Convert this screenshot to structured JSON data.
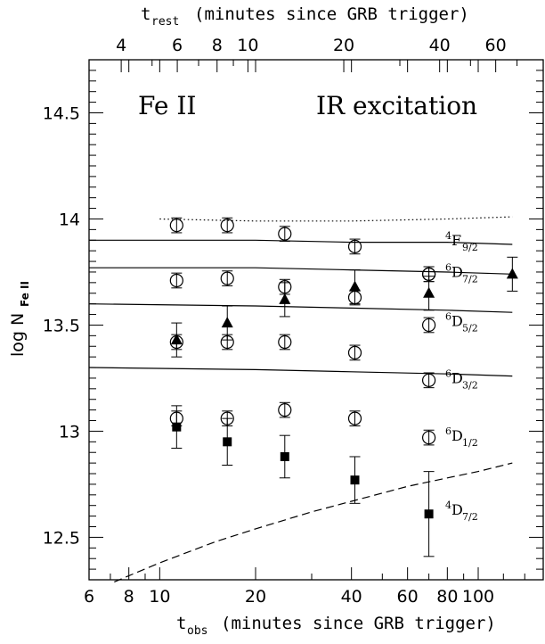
{
  "chart_data": {
    "type": "scatter",
    "xlabel": "obs",
    "xlabel_prefix": "t",
    "xlabel_rest": "(minutes since GRB trigger)",
    "toplabel_prefix": "t",
    "toplabel": "rest",
    "toplabel_rest": "(minutes since GRB trigger)",
    "ylabel_prefix": "log N",
    "ylabel": "Fe II",
    "x_scale": "log",
    "xlim": [
      6,
      160
    ],
    "ylim": [
      12.3,
      14.75
    ],
    "top_xlim": [
      3.17,
      84.6
    ],
    "x_ticks": [
      6,
      8,
      10,
      20,
      40,
      60,
      80,
      100
    ],
    "x_tick_labels": [
      "6",
      "8",
      "10",
      "20",
      "40",
      "60",
      "80",
      "100"
    ],
    "top_ticks": [
      4,
      6,
      8,
      10,
      20,
      40,
      60
    ],
    "top_tick_labels": [
      "4",
      "6",
      "8",
      "10",
      "20",
      "40",
      "60"
    ],
    "y_ticks": [
      12.5,
      13,
      13.5,
      14,
      14.5
    ],
    "y_tick_labels": [
      "12.5",
      "13",
      "13.5",
      "14",
      "14.5"
    ],
    "annotations": [
      "Fe II",
      "IR excitation"
    ],
    "open_circles": {
      "x": [
        11.3,
        16.3,
        24.7,
        41,
        70
      ],
      "levels": [
        {
          "name": "4F9/2",
          "y": [
            13.97,
            13.97,
            13.93,
            13.87,
            13.74
          ]
        },
        {
          "name": "6D7/2",
          "y": [
            13.71,
            13.72,
            13.68,
            13.63,
            13.74
          ]
        },
        {
          "name": "6D5/2",
          "y": [
            13.42,
            13.42,
            13.42,
            13.37,
            13.5
          ]
        },
        {
          "name": "6D3/2",
          "y": [
            13.06,
            13.06,
            13.1,
            13.06,
            13.24
          ]
        },
        {
          "name": "6D1/2",
          "y": [
            null,
            null,
            null,
            null,
            12.97
          ]
        }
      ]
    },
    "triangles": {
      "x": [
        11.3,
        16.3,
        24.7,
        41,
        70,
        128
      ],
      "y": [
        13.43,
        13.51,
        13.62,
        13.68,
        13.65,
        13.74
      ]
    },
    "squares": {
      "x": [
        11.3,
        16.3,
        24.7,
        41,
        70
      ],
      "y": [
        13.02,
        12.95,
        12.88,
        12.77,
        12.61
      ]
    },
    "lines": [
      {
        "style": "dotted",
        "x": [
          10,
          20,
          40,
          80,
          128
        ],
        "y": [
          14.0,
          13.99,
          13.99,
          14.0,
          14.01
        ]
      },
      {
        "style": "solid",
        "x": [
          6,
          20,
          40,
          80,
          128
        ],
        "y": [
          13.9,
          13.9,
          13.89,
          13.89,
          13.88
        ]
      },
      {
        "style": "solid",
        "x": [
          6,
          20,
          40,
          80,
          128
        ],
        "y": [
          13.77,
          13.77,
          13.76,
          13.75,
          13.74
        ]
      },
      {
        "style": "solid",
        "x": [
          6,
          20,
          40,
          80,
          128
        ],
        "y": [
          13.6,
          13.59,
          13.58,
          13.57,
          13.56
        ]
      },
      {
        "style": "solid",
        "x": [
          6,
          20,
          40,
          80,
          128
        ],
        "y": [
          13.3,
          13.29,
          13.28,
          13.27,
          13.26
        ]
      },
      {
        "style": "dashed",
        "x": [
          7.2,
          10,
          15,
          20,
          30,
          40,
          60,
          80,
          100,
          128
        ],
        "y": [
          12.29,
          12.38,
          12.48,
          12.54,
          12.62,
          12.67,
          12.74,
          12.78,
          12.81,
          12.85
        ]
      }
    ],
    "level_labels": [
      {
        "text": "4",
        "sub": "9/2",
        "main": "F",
        "y": 13.88
      },
      {
        "text": "6",
        "sub": "7/2",
        "main": "D",
        "y": 13.73
      },
      {
        "text": "6",
        "sub": "5/2",
        "main": "D",
        "y": 13.5
      },
      {
        "text": "6",
        "sub": "3/2",
        "main": "D",
        "y": 13.23
      },
      {
        "text": "6",
        "sub": "1/2",
        "main": "D",
        "y": 12.96
      },
      {
        "text": "4",
        "sub": "7/2",
        "main": "D",
        "y": 12.61
      }
    ]
  }
}
